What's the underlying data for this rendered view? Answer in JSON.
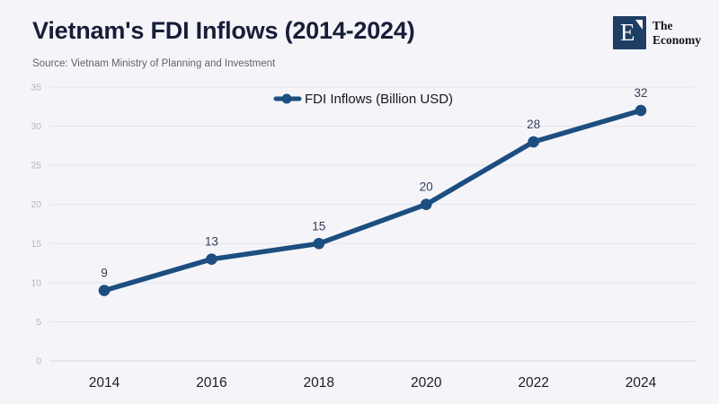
{
  "header": {
    "title": "Vietnam's FDI Inflows (2014-2024)",
    "source": "Source: Vietnam Ministry of Planning and Investment"
  },
  "logo": {
    "letter": "E",
    "name_line1": "The",
    "name_line2": "Economy"
  },
  "chart_data": {
    "type": "line",
    "title": "Vietnam's FDI Inflows (2014-2024)",
    "categories": [
      "2014",
      "2016",
      "2018",
      "2020",
      "2022",
      "2024"
    ],
    "values": [
      9,
      13,
      15,
      20,
      28,
      32
    ],
    "series": [
      {
        "name": "FDI Inflows (Billion USD)",
        "values": [
          9,
          13,
          15,
          20,
          28,
          32
        ]
      }
    ],
    "legend_label": "FDI Inflows (Billion USD)",
    "xlabel": "",
    "ylabel": "",
    "ylim": [
      0,
      35
    ],
    "yticks": [
      0,
      5,
      10,
      15,
      20,
      25,
      30,
      35
    ],
    "grid": true,
    "legend_position": "top-center",
    "colors": {
      "line": "#1c4e80",
      "marker": "#1c4e80",
      "grid": "#e3e4ec",
      "baseline": "#d5d6de",
      "y_tick_label": "#b1b4c0",
      "x_tick_label": "#1d1d26",
      "data_label": "#333f58",
      "legend_text": "#16161e"
    }
  },
  "theme": {
    "background": "#f5f5f9",
    "title_color": "#181d39",
    "source_color": "#62626e",
    "logo_background": "#1e3f63",
    "brand_text_color": "#14141c"
  }
}
